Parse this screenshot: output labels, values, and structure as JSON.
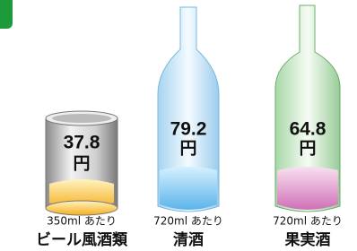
{
  "items": [
    {
      "price": 37.8,
      "unit": "円",
      "volume": "350ml あたり",
      "name": "ビール風酒類"
    },
    {
      "price": 79.2,
      "unit": "円",
      "volume": "720ml あたり",
      "name": "清酒"
    },
    {
      "price": 64.8,
      "unit": "円",
      "volume": "720ml あたり",
      "name": "果実酒"
    }
  ]
}
